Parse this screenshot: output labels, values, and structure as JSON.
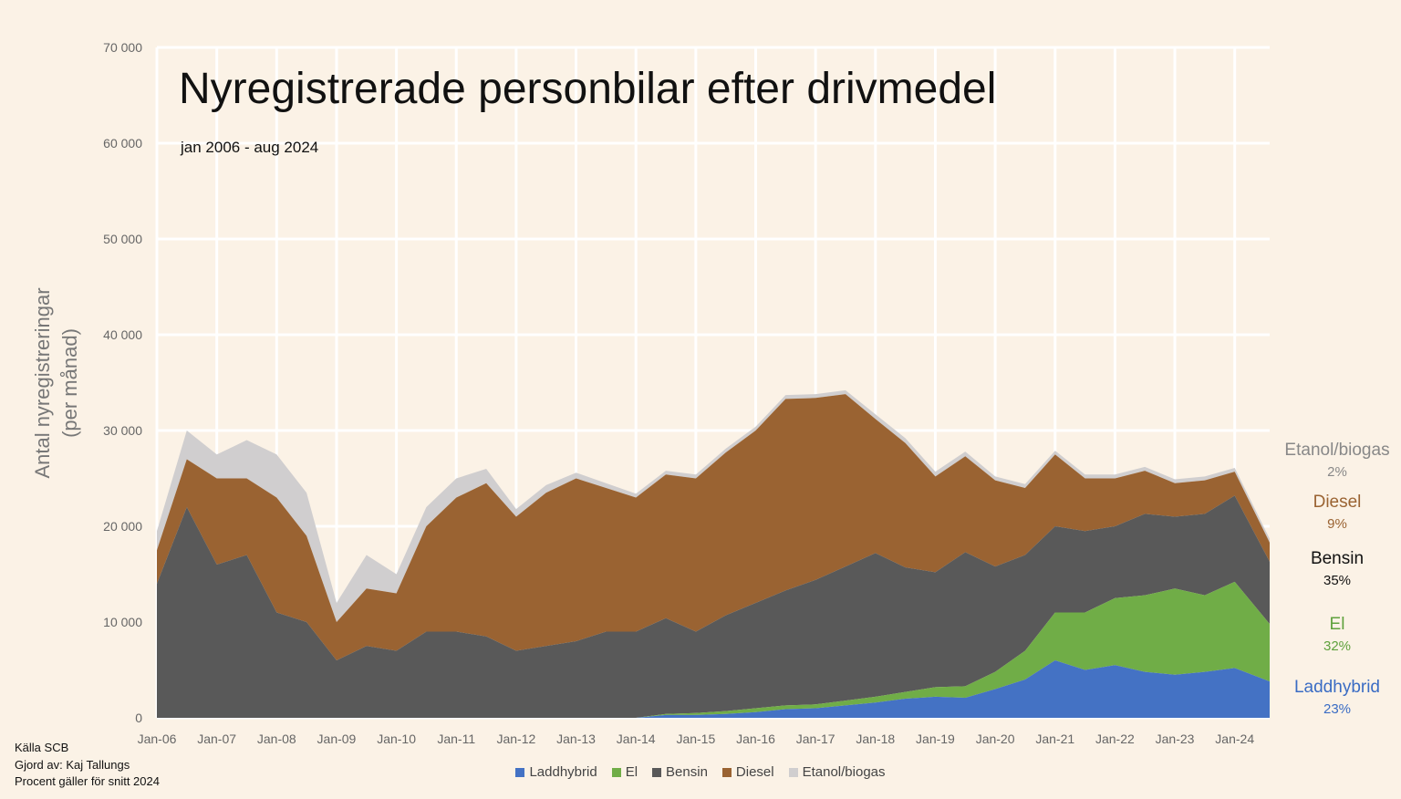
{
  "title": "Nyregistrerade personbilar efter drivmedel",
  "subtitle": "jan 2006 - aug 2024",
  "ylabel_line1": "Antal nyregistreringar",
  "ylabel_line2": "(per månad)",
  "footnote": [
    "Källa SCB",
    "Gjord av: Kaj Tallungs",
    "Procent gäller för snitt 2024"
  ],
  "shares_2024": [
    {
      "name": "Etanol/biogas",
      "value": "2%",
      "color": "#8c8c8c"
    },
    {
      "name": "Diesel",
      "value": "9%",
      "color": "#9a6332"
    },
    {
      "name": "Bensin",
      "value": "35%",
      "color": "#111111"
    },
    {
      "name": "El",
      "value": "32%",
      "color": "#5fa13d"
    },
    {
      "name": "Laddhybrid",
      "value": "23%",
      "color": "#3a6cc4"
    }
  ],
  "chart_data": {
    "type": "area",
    "stacked": true,
    "title": "Nyregistrerade personbilar efter drivmedel",
    "subtitle": "jan 2006 - aug 2024",
    "ylabel": "Antal nyregistreringar (per månad)",
    "xlabel": "",
    "ylim": [
      0,
      70000
    ],
    "yticks": [
      0,
      10000,
      20000,
      30000,
      40000,
      50000,
      60000,
      70000
    ],
    "ytick_labels": [
      "0",
      "10 000",
      "20 000",
      "30 000",
      "40 000",
      "50 000",
      "60 000",
      "70 000"
    ],
    "xtick_labels": [
      "Jan-06",
      "Jan-07",
      "Jan-08",
      "Jan-09",
      "Jan-10",
      "Jan-11",
      "Jan-12",
      "Jan-13",
      "Jan-14",
      "Jan-15",
      "Jan-16",
      "Jan-17",
      "Jan-18",
      "Jan-19",
      "Jan-20",
      "Jan-21",
      "Jan-22",
      "Jan-23",
      "Jan-24"
    ],
    "grid": true,
    "legend_position": "bottom",
    "start": "2006-01",
    "end": "2024-08",
    "x_resolution": "yearly samples (Jan and Jul); the chart shows monthly values",
    "x": [
      "2006-01",
      "2006-07",
      "2007-01",
      "2007-07",
      "2008-01",
      "2008-07",
      "2009-01",
      "2009-07",
      "2010-01",
      "2010-07",
      "2011-01",
      "2011-07",
      "2012-01",
      "2012-07",
      "2013-01",
      "2013-07",
      "2014-01",
      "2014-07",
      "2015-01",
      "2015-07",
      "2016-01",
      "2016-07",
      "2017-01",
      "2017-07",
      "2018-01",
      "2018-07",
      "2019-01",
      "2019-07",
      "2020-01",
      "2020-07",
      "2021-01",
      "2021-07",
      "2022-01",
      "2022-07",
      "2023-01",
      "2023-07",
      "2024-01",
      "2024-08"
    ],
    "series": [
      {
        "name": "Laddhybrid",
        "color": "#4472c4",
        "values": [
          0,
          0,
          0,
          0,
          0,
          0,
          0,
          0,
          0,
          0,
          0,
          0,
          0,
          0,
          0,
          0,
          0,
          300,
          300,
          400,
          600,
          900,
          1000,
          1300,
          1600,
          2000,
          2200,
          2100,
          3000,
          4000,
          6000,
          5000,
          5500,
          4800,
          4500,
          4800,
          5200,
          3800
        ]
      },
      {
        "name": "El",
        "color": "#70ad47",
        "values": [
          0,
          0,
          0,
          0,
          0,
          0,
          0,
          0,
          0,
          0,
          0,
          0,
          0,
          0,
          0,
          0,
          0,
          100,
          200,
          300,
          400,
          400,
          400,
          500,
          600,
          700,
          1000,
          1200,
          1800,
          3000,
          5000,
          6000,
          7000,
          8000,
          9000,
          8000,
          9000,
          6000
        ]
      },
      {
        "name": "Bensin",
        "color": "#595959",
        "values": [
          14000,
          22000,
          16000,
          17000,
          11000,
          10000,
          6000,
          7500,
          7000,
          9000,
          9000,
          8500,
          7000,
          7500,
          8000,
          9000,
          9000,
          10000,
          8500,
          10000,
          11000,
          12000,
          13000,
          14000,
          15000,
          13000,
          12000,
          14000,
          11000,
          10000,
          9000,
          8500,
          7500,
          8500,
          7500,
          8500,
          9000,
          6500
        ]
      },
      {
        "name": "Diesel",
        "color": "#9a6332",
        "values": [
          3500,
          5000,
          9000,
          8000,
          12000,
          9000,
          4000,
          6000,
          6000,
          11000,
          14000,
          16000,
          14000,
          16000,
          17000,
          15000,
          14000,
          15000,
          16000,
          17000,
          18000,
          20000,
          19000,
          18000,
          14000,
          13000,
          10000,
          10000,
          9000,
          7000,
          7500,
          5500,
          5000,
          4500,
          3500,
          3500,
          2500,
          2000
        ]
      },
      {
        "name": "Etanol/biogas",
        "color": "#d0cecf",
        "values": [
          2000,
          3000,
          2500,
          4000,
          4500,
          4500,
          2000,
          3500,
          2000,
          2000,
          2000,
          1500,
          800,
          800,
          600,
          500,
          400,
          400,
          400,
          400,
          400,
          400,
          400,
          400,
          500,
          500,
          500,
          500,
          400,
          400,
          400,
          400,
          400,
          400,
          400,
          400,
          400,
          400
        ]
      }
    ]
  }
}
